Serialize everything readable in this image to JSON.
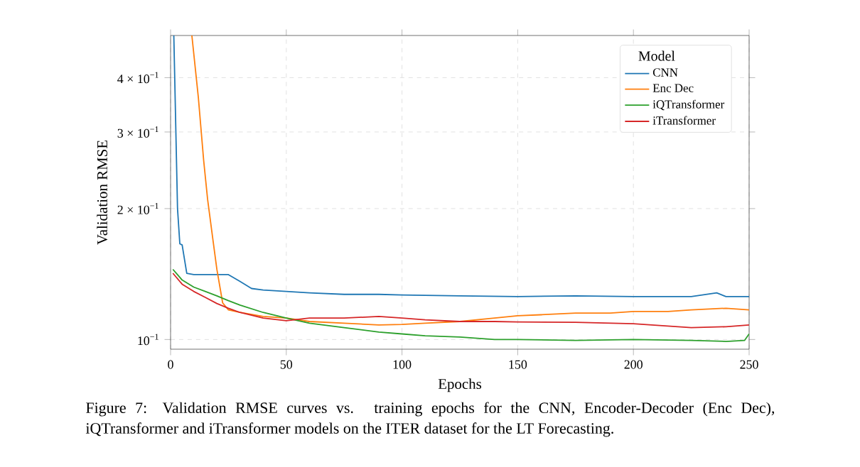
{
  "chart_data": {
    "type": "line",
    "xlabel": "Epochs",
    "ylabel": "Validation RMSE",
    "legend_title": "Model",
    "xlim": [
      0,
      250
    ],
    "xticks": [
      0,
      50,
      100,
      150,
      200,
      250
    ],
    "ylim": [
      0.095,
      0.5
    ],
    "log": "y",
    "yticks": [
      {
        "value": 0.1,
        "label": "10$^{−1}$"
      },
      {
        "value": 0.2,
        "label": "2 × 10$^{−1}$"
      },
      {
        "value": 0.3,
        "label": "3 × 10$^{−1}$"
      },
      {
        "value": 0.4,
        "label": "4 × 10$^{−1}$"
      }
    ],
    "grid": true,
    "legend": "top right",
    "line_style": "solid",
    "series": [
      {
        "name": "CNN",
        "color": "#1f77b4",
        "x": [
          1.4,
          3,
          4,
          5,
          7,
          10,
          15,
          20,
          25,
          30,
          35,
          40,
          50,
          60,
          75,
          90,
          100,
          125,
          150,
          175,
          200,
          225,
          236,
          240,
          250
        ],
        "values": [
          0.5,
          0.2,
          0.166,
          0.165,
          0.142,
          0.141,
          0.141,
          0.141,
          0.141,
          0.136,
          0.131,
          0.13,
          0.129,
          0.128,
          0.127,
          0.127,
          0.1266,
          0.126,
          0.1255,
          0.126,
          0.1255,
          0.1255,
          0.128,
          0.1255,
          0.1255
        ]
      },
      {
        "name": "Enc Dec",
        "color": "#ff7f0e",
        "x": [
          9.2,
          12,
          14.3,
          16,
          18.4,
          20,
          22.5,
          25,
          30,
          40,
          50,
          60,
          75,
          90,
          100,
          110,
          125,
          140,
          150,
          160,
          175,
          190,
          200,
          215,
          225,
          240,
          250
        ],
        "values": [
          0.5,
          0.36,
          0.258,
          0.21,
          0.168,
          0.145,
          0.1214,
          0.117,
          0.1154,
          0.113,
          0.112,
          0.11,
          0.109,
          0.108,
          0.1083,
          0.109,
          0.11,
          0.112,
          0.1134,
          0.114,
          0.115,
          0.115,
          0.116,
          0.116,
          0.117,
          0.118,
          0.117
        ]
      },
      {
        "name": "iQTransformer",
        "color": "#2ca02c",
        "x": [
          1,
          5,
          10,
          15,
          20,
          25,
          30,
          40,
          50,
          60,
          75,
          90,
          100,
          110,
          125,
          140,
          150,
          175,
          200,
          225,
          240,
          248,
          250
        ],
        "values": [
          0.145,
          0.137,
          0.132,
          0.129,
          0.126,
          0.1228,
          0.12,
          0.1154,
          0.112,
          0.109,
          0.1065,
          0.104,
          0.103,
          0.102,
          0.1013,
          0.1,
          0.1,
          0.0995,
          0.1,
          0.0995,
          0.099,
          0.0995,
          0.103
        ]
      },
      {
        "name": "iTransformer",
        "color": "#d62728",
        "x": [
          1,
          5,
          10,
          15,
          20,
          25,
          30,
          40,
          50,
          60,
          75,
          90,
          100,
          110,
          125,
          140,
          150,
          175,
          200,
          225,
          240,
          250
        ],
        "values": [
          0.142,
          0.134,
          0.129,
          0.125,
          0.121,
          0.118,
          0.1154,
          0.112,
          0.1105,
          0.112,
          0.112,
          0.113,
          0.112,
          0.111,
          0.11,
          0.11,
          0.1097,
          0.1095,
          0.1087,
          0.1065,
          0.107,
          0.108
        ]
      }
    ],
    "annotations": [
      "Figure 7: Validation RMSE curves vs.  training epochs for the CNN, Encoder-Decoder (Enc Dec), iQTransformer and iTransformer models on the ITER dataset for the LT Forecasting."
    ]
  }
}
